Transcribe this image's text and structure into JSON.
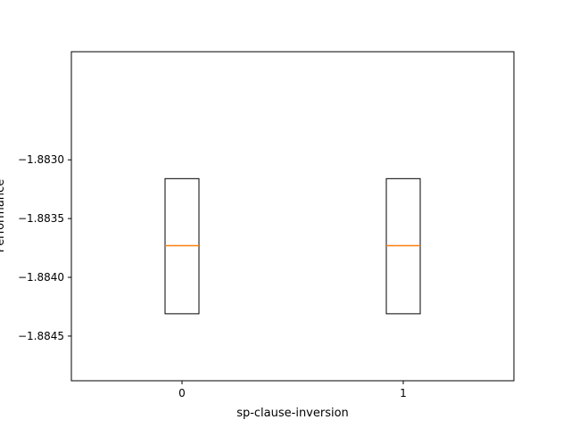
{
  "chart_data": {
    "type": "box",
    "xlabel": "sp-clause-inversion",
    "ylabel": "Performance",
    "categories": [
      "0",
      "1"
    ],
    "ylim": [
      -1.88488,
      -1.88208
    ],
    "y_ticks": [
      -1.883,
      -1.8835,
      -1.884,
      -1.8845
    ],
    "y_tick_labels": [
      "−1.8830",
      "−1.8835",
      "−1.8840",
      "−1.8845"
    ],
    "boxes": [
      {
        "category": "0",
        "q1": -1.88431,
        "median": -1.88373,
        "q3": -1.88316
      },
      {
        "category": "1",
        "q1": -1.88431,
        "median": -1.88373,
        "q3": -1.88316
      }
    ],
    "grid": false,
    "colors": {
      "box": "#000000",
      "median": "#ff7f0e"
    }
  }
}
